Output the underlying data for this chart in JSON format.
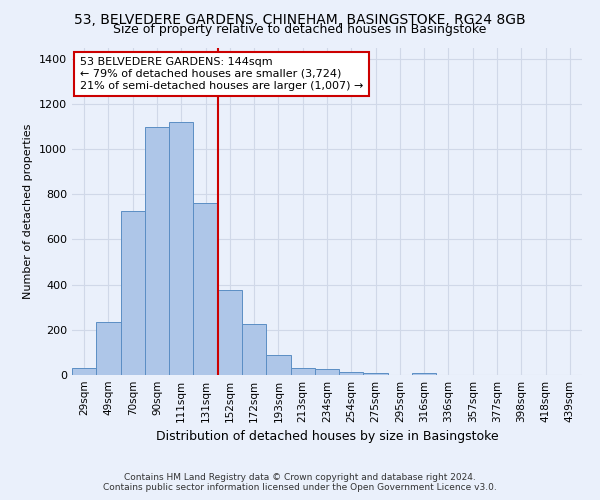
{
  "title1": "53, BELVEDERE GARDENS, CHINEHAM, BASINGSTOKE, RG24 8GB",
  "title2": "Size of property relative to detached houses in Basingstoke",
  "xlabel": "Distribution of detached houses by size in Basingstoke",
  "ylabel": "Number of detached properties",
  "footnote1": "Contains HM Land Registry data © Crown copyright and database right 2024.",
  "footnote2": "Contains public sector information licensed under the Open Government Licence v3.0.",
  "bar_labels": [
    "29sqm",
    "49sqm",
    "70sqm",
    "90sqm",
    "111sqm",
    "131sqm",
    "152sqm",
    "172sqm",
    "193sqm",
    "213sqm",
    "234sqm",
    "254sqm",
    "275sqm",
    "295sqm",
    "316sqm",
    "336sqm",
    "357sqm",
    "377sqm",
    "398sqm",
    "418sqm",
    "439sqm"
  ],
  "bar_values": [
    30,
    235,
    725,
    1100,
    1120,
    760,
    375,
    225,
    90,
    30,
    25,
    15,
    10,
    0,
    10,
    0,
    0,
    0,
    0,
    0,
    0
  ],
  "bar_color": "#aec6e8",
  "bar_edge_color": "#5b8ec4",
  "grid_color": "#d0d8e8",
  "background_color": "#eaf0fb",
  "vline_color": "#cc0000",
  "annotation_text": "53 BELVEDERE GARDENS: 144sqm\n← 79% of detached houses are smaller (3,724)\n21% of semi-detached houses are larger (1,007) →",
  "annotation_box_color": "#ffffff",
  "annotation_box_edge": "#cc0000",
  "ylim": [
    0,
    1450
  ],
  "yticks": [
    0,
    200,
    400,
    600,
    800,
    1000,
    1200,
    1400
  ],
  "title1_fontsize": 10,
  "title2_fontsize": 9,
  "xlabel_fontsize": 9,
  "ylabel_fontsize": 8,
  "tick_fontsize": 8,
  "xtick_fontsize": 7.5,
  "annotation_fontsize": 8,
  "footnote_fontsize": 6.5
}
